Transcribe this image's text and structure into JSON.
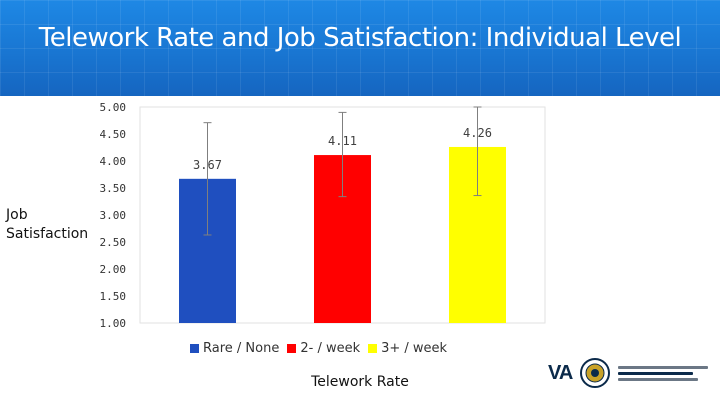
{
  "title": "Telework Rate and Job Satisfaction: Individual Level",
  "colors": {
    "banner": "#1976d2",
    "rare": "#1f4fbf",
    "two_week": "#ff0000",
    "three_week": "#ffff00"
  },
  "chart_data": {
    "type": "bar",
    "title": "Telework Rate and Job Satisfaction: Individual Level",
    "xlabel": "Telework Rate",
    "ylabel": "Job Satisfaction",
    "categories": [
      "Rare / None",
      "2- / week",
      "3+ / week"
    ],
    "values": [
      3.67,
      4.11,
      4.26
    ],
    "value_labels": [
      "3.67",
      "4.11",
      "4.26"
    ],
    "error_high": [
      4.71,
      4.9,
      5.0
    ],
    "error_low": [
      2.63,
      3.34,
      3.36
    ],
    "colors": [
      "#1f4fbf",
      "#ff0000",
      "#ffff00"
    ],
    "ylim": [
      1.0,
      5.0
    ],
    "yticks": [
      "1.00",
      "1.50",
      "2.00",
      "2.50",
      "3.00",
      "3.50",
      "4.00",
      "4.50",
      "5.00"
    ],
    "legend_position": "bottom",
    "grid": false
  },
  "logo": {
    "va_text": "VA"
  }
}
